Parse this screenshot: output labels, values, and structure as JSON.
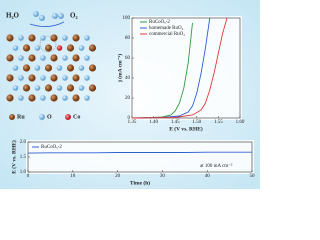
{
  "illustration": {
    "molecules": [
      "H₂O",
      "O₂"
    ],
    "legend": [
      "Ru",
      "O",
      "Co"
    ]
  },
  "chart_data": [
    {
      "type": "line",
      "xlabel": "E (V vs. RHE)",
      "ylabel": "j (mA cm⁻²)",
      "xlim": [
        1.35,
        1.6
      ],
      "xticks": [
        1.35,
        {
          "value": 1.4,
          "label": "1.40"
        },
        1.45,
        {
          "value": 1.5,
          "label": "1.50"
        },
        1.55,
        {
          "value": 1.6,
          "label": "1.60"
        }
      ],
      "ylim": [
        0,
        100
      ],
      "yticks": [
        0,
        20,
        40,
        60,
        80,
        100
      ],
      "series": [
        {
          "name": "RuCoOₓ-2",
          "color": "#2e9e3e",
          "x": [
            1.35,
            1.4,
            1.42,
            1.44,
            1.45,
            1.46,
            1.47,
            1.48,
            1.49
          ],
          "values": [
            0,
            0.5,
            1,
            3,
            7,
            15,
            30,
            55,
            95
          ]
        },
        {
          "name": "homemade RuO₂",
          "color": "#2d5fd6",
          "x": [
            1.35,
            1.42,
            1.46,
            1.48,
            1.49,
            1.5,
            1.51,
            1.52,
            1.53
          ],
          "values": [
            0,
            0.5,
            2,
            6,
            12,
            25,
            45,
            70,
            100
          ]
        },
        {
          "name": "commercial RuO₂",
          "color": "#e03a3a",
          "x": [
            1.35,
            1.45,
            1.49,
            1.51,
            1.52,
            1.53,
            1.54,
            1.55,
            1.56,
            1.57
          ],
          "values": [
            0,
            0.5,
            3,
            8,
            15,
            28,
            45,
            65,
            85,
            100
          ]
        }
      ]
    },
    {
      "type": "line",
      "xlabel": "Time (h)",
      "ylabel": "E (V vs. RHE)",
      "annotation": "at 100 mA cm⁻²",
      "xlim": [
        0,
        50
      ],
      "xticks": [
        0,
        10,
        20,
        30,
        40,
        50
      ],
      "ylim": [
        1.0,
        2.0
      ],
      "yticks": [
        {
          "value": 1.0,
          "label": "1.0"
        },
        1.5,
        {
          "value": 2.0,
          "label": "2.0"
        }
      ],
      "series": [
        {
          "name": "RuCoOₓ-2",
          "color": "#2d5fd6",
          "x": [
            0,
            5,
            10,
            15,
            20,
            25,
            30,
            35,
            40,
            45,
            50
          ],
          "values": [
            1.63,
            1.64,
            1.64,
            1.64,
            1.65,
            1.65,
            1.65,
            1.65,
            1.66,
            1.66,
            1.66
          ]
        }
      ]
    }
  ]
}
